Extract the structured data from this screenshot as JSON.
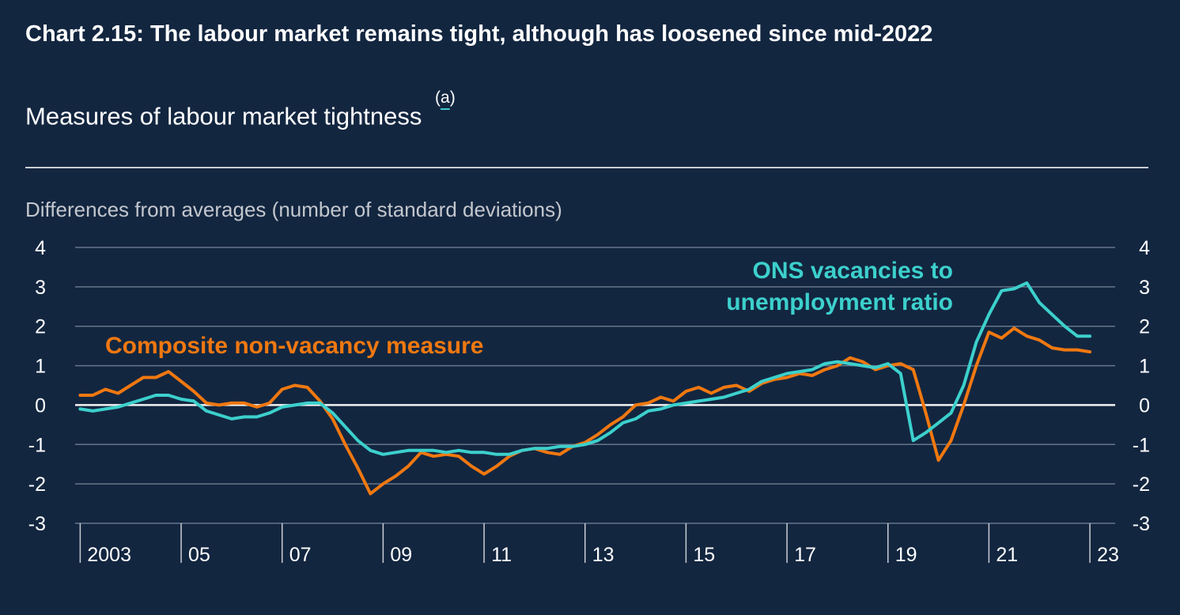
{
  "header": {
    "title": "Chart 2.15: The labour market remains tight, although has loosened since mid-2022",
    "subtitle": "Measures of labour market tightness",
    "footnote_open": "(",
    "footnote_letter": "a",
    "footnote_close": ")"
  },
  "chart_data": {
    "type": "line",
    "title": "Chart 2.15: The labour market remains tight, although has loosened since mid-2022",
    "subtitle": "Measures of labour market tightness",
    "ylabel": "Differences from averages (number of standard deviations)",
    "xlabel": "",
    "ylim": [
      -3,
      4
    ],
    "xlim": [
      2002.9,
      2023.5
    ],
    "y_ticks": [
      "4",
      "3",
      "2",
      "1",
      "0",
      "-1",
      "-2",
      "-3"
    ],
    "x_ticks": [
      "2003",
      "05",
      "07",
      "09",
      "11",
      "13",
      "15",
      "17",
      "19",
      "21",
      "23"
    ],
    "grid": true,
    "series": [
      {
        "name": "Composite non-vacancy measure",
        "label_lines": [
          "Composite non-vacancy measure"
        ],
        "color": "#f07810",
        "x": [
          2003.0,
          2003.25,
          2003.5,
          2003.75,
          2004.0,
          2004.25,
          2004.5,
          2004.75,
          2005.0,
          2005.25,
          2005.5,
          2005.75,
          2006.0,
          2006.25,
          2006.5,
          2006.75,
          2007.0,
          2007.25,
          2007.5,
          2007.75,
          2008.0,
          2008.25,
          2008.5,
          2008.75,
          2009.0,
          2009.25,
          2009.5,
          2009.75,
          2010.0,
          2010.25,
          2010.5,
          2010.75,
          2011.0,
          2011.25,
          2011.5,
          2011.75,
          2012.0,
          2012.25,
          2012.5,
          2012.75,
          2013.0,
          2013.25,
          2013.5,
          2013.75,
          2014.0,
          2014.25,
          2014.5,
          2014.75,
          2015.0,
          2015.25,
          2015.5,
          2015.75,
          2016.0,
          2016.25,
          2016.5,
          2016.75,
          2017.0,
          2017.25,
          2017.5,
          2017.75,
          2018.0,
          2018.25,
          2018.5,
          2018.75,
          2019.0,
          2019.25,
          2019.5,
          2019.75,
          2020.0,
          2020.25,
          2020.5,
          2020.75,
          2021.0,
          2021.25,
          2021.5,
          2021.75,
          2022.0,
          2022.25,
          2022.5,
          2022.75,
          2023.0
        ],
        "values": [
          0.25,
          0.25,
          0.4,
          0.3,
          0.5,
          0.7,
          0.7,
          0.85,
          0.6,
          0.35,
          0.05,
          0.0,
          0.05,
          0.05,
          -0.05,
          0.05,
          0.4,
          0.5,
          0.45,
          0.1,
          -0.35,
          -1.0,
          -1.6,
          -2.25,
          -2.0,
          -1.8,
          -1.55,
          -1.2,
          -1.3,
          -1.25,
          -1.3,
          -1.55,
          -1.75,
          -1.55,
          -1.3,
          -1.15,
          -1.1,
          -1.2,
          -1.25,
          -1.05,
          -0.95,
          -0.75,
          -0.5,
          -0.3,
          0.0,
          0.05,
          0.2,
          0.1,
          0.35,
          0.45,
          0.3,
          0.45,
          0.5,
          0.35,
          0.55,
          0.65,
          0.7,
          0.8,
          0.75,
          0.9,
          1.0,
          1.2,
          1.1,
          0.9,
          1.0,
          1.05,
          0.9,
          -0.2,
          -1.4,
          -0.9,
          0.0,
          1.0,
          1.85,
          1.7,
          1.95,
          1.75,
          1.65,
          1.45,
          1.4,
          1.4,
          1.35
        ]
      },
      {
        "name": "ONS vacancies to unemployment ratio",
        "label_lines": [
          "ONS vacancies to",
          "unemployment ratio"
        ],
        "color": "#3cd0cc",
        "x": [
          2003.0,
          2003.25,
          2003.5,
          2003.75,
          2004.0,
          2004.25,
          2004.5,
          2004.75,
          2005.0,
          2005.25,
          2005.5,
          2005.75,
          2006.0,
          2006.25,
          2006.5,
          2006.75,
          2007.0,
          2007.25,
          2007.5,
          2007.75,
          2008.0,
          2008.25,
          2008.5,
          2008.75,
          2009.0,
          2009.25,
          2009.5,
          2009.75,
          2010.0,
          2010.25,
          2010.5,
          2010.75,
          2011.0,
          2011.25,
          2011.5,
          2011.75,
          2012.0,
          2012.25,
          2012.5,
          2012.75,
          2013.0,
          2013.25,
          2013.5,
          2013.75,
          2014.0,
          2014.25,
          2014.5,
          2014.75,
          2015.0,
          2015.25,
          2015.5,
          2015.75,
          2016.0,
          2016.25,
          2016.5,
          2016.75,
          2017.0,
          2017.25,
          2017.5,
          2017.75,
          2018.0,
          2018.25,
          2018.5,
          2018.75,
          2019.0,
          2019.25,
          2019.5,
          2019.75,
          2020.0,
          2020.25,
          2020.5,
          2020.75,
          2021.0,
          2021.25,
          2021.5,
          2021.75,
          2022.0,
          2022.25,
          2022.5,
          2022.75,
          2023.0
        ],
        "values": [
          -0.1,
          -0.15,
          -0.1,
          -0.05,
          0.05,
          0.15,
          0.25,
          0.25,
          0.15,
          0.1,
          -0.15,
          -0.25,
          -0.35,
          -0.3,
          -0.3,
          -0.2,
          -0.05,
          0.0,
          0.05,
          0.05,
          -0.2,
          -0.55,
          -0.9,
          -1.15,
          -1.25,
          -1.2,
          -1.15,
          -1.15,
          -1.15,
          -1.2,
          -1.15,
          -1.2,
          -1.2,
          -1.25,
          -1.25,
          -1.15,
          -1.1,
          -1.1,
          -1.05,
          -1.05,
          -1.0,
          -0.9,
          -0.7,
          -0.45,
          -0.35,
          -0.15,
          -0.1,
          0.0,
          0.05,
          0.1,
          0.15,
          0.2,
          0.3,
          0.4,
          0.6,
          0.7,
          0.8,
          0.85,
          0.9,
          1.05,
          1.1,
          1.05,
          1.0,
          0.95,
          1.05,
          0.8,
          -0.9,
          -0.7,
          -0.45,
          -0.2,
          0.5,
          1.6,
          2.3,
          2.9,
          2.95,
          3.1,
          2.6,
          2.3,
          2.0,
          1.75,
          1.75
        ]
      }
    ]
  }
}
